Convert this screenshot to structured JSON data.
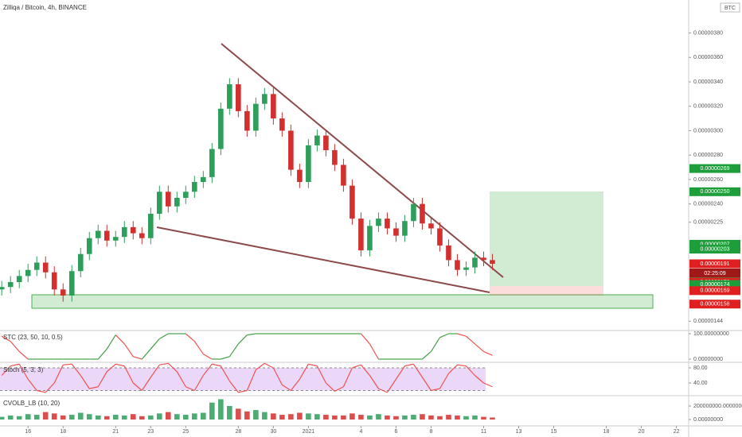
{
  "chart_data": {
    "type": "candlestick",
    "title": "Zilliqa / Bitcoin, 4h, BINANCE",
    "currency": "BTC",
    "countdown": "02:25:09",
    "up_color": "#2e9e5b",
    "down_color": "#d32f2f",
    "x": [
      -1.5,
      -1,
      -0.5,
      0,
      0.5,
      1,
      1.5,
      2,
      2.5,
      3,
      3.5,
      4,
      4.5,
      5,
      5.5,
      6,
      6.5,
      7,
      7.5,
      8,
      8.5,
      9,
      9.5,
      10,
      10.5,
      11,
      11.5,
      12,
      12.5,
      13,
      13.5,
      14,
      14.5,
      15,
      15.5,
      16,
      16.5,
      17,
      17.5,
      18,
      18.5,
      19,
      19.5,
      20,
      20.5,
      21,
      21.5,
      22,
      22.5,
      23,
      23.5,
      24,
      24.5,
      25,
      25.5,
      26,
      26.5
    ],
    "open": [
      1.7e-06,
      1.72e-06,
      1.76e-06,
      1.81e-06,
      1.86e-06,
      1.92e-06,
      1.84e-06,
      1.7e-06,
      1.65e-06,
      1.85e-06,
      1.99e-06,
      2.12e-06,
      2.18e-06,
      2.1e-06,
      2.13e-06,
      2.21e-06,
      2.16e-06,
      2.12e-06,
      2.32e-06,
      2.5e-06,
      2.38e-06,
      2.45e-06,
      2.5e-06,
      2.58e-06,
      2.62e-06,
      2.85e-06,
      3.18e-06,
      3.38e-06,
      3.16e-06,
      3e-06,
      3.22e-06,
      3.3e-06,
      3.1e-06,
      3e-06,
      2.68e-06,
      2.58e-06,
      2.88e-06,
      2.96e-06,
      2.84e-06,
      2.72e-06,
      2.55e-06,
      2.28e-06,
      2.02e-06,
      2.22e-06,
      2.28e-06,
      2.2e-06,
      2.14e-06,
      2.26e-06,
      2.4e-06,
      2.24e-06,
      2.2e-06,
      2.06e-06,
      1.94e-06,
      1.86e-06,
      1.88e-06,
      1.96e-06,
      1.94e-06
    ],
    "high": [
      1.77e-06,
      1.81e-06,
      1.86e-06,
      1.91e-06,
      1.97e-06,
      1.97e-06,
      1.89e-06,
      1.75e-06,
      1.9e-06,
      2.04e-06,
      2.17e-06,
      2.23e-06,
      2.23e-06,
      2.18e-06,
      2.26e-06,
      2.26e-06,
      2.21e-06,
      2.37e-06,
      2.55e-06,
      2.55e-06,
      2.5e-06,
      2.55e-06,
      2.63e-06,
      2.67e-06,
      2.9e-06,
      3.23e-06,
      3.43e-06,
      3.43e-06,
      3.21e-06,
      3.27e-06,
      3.35e-06,
      3.35e-06,
      3.15e-06,
      3.05e-06,
      2.73e-06,
      2.93e-06,
      3.01e-06,
      3.01e-06,
      2.89e-06,
      2.77e-06,
      2.6e-06,
      2.33e-06,
      2.27e-06,
      2.33e-06,
      2.33e-06,
      2.25e-06,
      2.31e-06,
      2.45e-06,
      2.45e-06,
      2.29e-06,
      2.25e-06,
      2.11e-06,
      1.99e-06,
      1.93e-06,
      2.01e-06,
      2.01e-06,
      1.99e-06
    ],
    "low": [
      1.65e-06,
      1.67e-06,
      1.71e-06,
      1.76e-06,
      1.81e-06,
      1.79e-06,
      1.65e-06,
      1.6e-06,
      1.6e-06,
      1.8e-06,
      1.94e-06,
      2.07e-06,
      2.05e-06,
      2.05e-06,
      2.08e-06,
      2.11e-06,
      2.07e-06,
      2.07e-06,
      2.27e-06,
      2.33e-06,
      2.33e-06,
      2.4e-06,
      2.45e-06,
      2.53e-06,
      2.57e-06,
      2.8e-06,
      3.13e-06,
      3.11e-06,
      2.95e-06,
      2.95e-06,
      3.17e-06,
      3.05e-06,
      2.95e-06,
      2.63e-06,
      2.53e-06,
      2.53e-06,
      2.83e-06,
      2.79e-06,
      2.67e-06,
      2.5e-06,
      2.23e-06,
      1.97e-06,
      1.97e-06,
      2.17e-06,
      2.15e-06,
      2.09e-06,
      2.09e-06,
      2.21e-06,
      2.19e-06,
      2.15e-06,
      2.01e-06,
      1.89e-06,
      1.81e-06,
      1.81e-06,
      1.83e-06,
      1.89e-06,
      1.86e-06
    ],
    "close": [
      1.72e-06,
      1.76e-06,
      1.81e-06,
      1.86e-06,
      1.92e-06,
      1.84e-06,
      1.7e-06,
      1.65e-06,
      1.85e-06,
      1.99e-06,
      2.12e-06,
      2.18e-06,
      2.1e-06,
      2.13e-06,
      2.21e-06,
      2.16e-06,
      2.12e-06,
      2.32e-06,
      2.5e-06,
      2.38e-06,
      2.45e-06,
      2.5e-06,
      2.58e-06,
      2.62e-06,
      2.85e-06,
      3.18e-06,
      3.38e-06,
      3.16e-06,
      3e-06,
      3.22e-06,
      3.3e-06,
      3.1e-06,
      3e-06,
      2.68e-06,
      2.58e-06,
      2.88e-06,
      2.96e-06,
      2.84e-06,
      2.72e-06,
      2.55e-06,
      2.28e-06,
      2.02e-06,
      2.22e-06,
      2.28e-06,
      2.2e-06,
      2.14e-06,
      2.26e-06,
      2.4e-06,
      2.24e-06,
      2.2e-06,
      2.06e-06,
      1.94e-06,
      1.86e-06,
      1.88e-06,
      1.96e-06,
      1.94e-06,
      1.91e-06
    ],
    "xlim": [
      -1.6,
      37.7
    ],
    "xticks": [
      {
        "value": 0,
        "label": "16"
      },
      {
        "value": 2,
        "label": "18"
      },
      {
        "value": 5,
        "label": "21"
      },
      {
        "value": 7,
        "label": "23"
      },
      {
        "value": 9,
        "label": "25"
      },
      {
        "value": 12,
        "label": "28"
      },
      {
        "value": 14,
        "label": "30"
      },
      {
        "value": 16,
        "label": "2021"
      },
      {
        "value": 19,
        "label": "4"
      },
      {
        "value": 21,
        "label": "6"
      },
      {
        "value": 23,
        "label": "8"
      },
      {
        "value": 26,
        "label": "11"
      },
      {
        "value": 28,
        "label": "13"
      },
      {
        "value": 30,
        "label": "15"
      },
      {
        "value": 33,
        "label": "18"
      },
      {
        "value": 35,
        "label": "20"
      },
      {
        "value": 37,
        "label": "22"
      }
    ],
    "ylim": [
      1.37e-06,
      4.07e-06
    ],
    "yticks": [
      {
        "value": 3.8e-06,
        "label": "0.00000380"
      },
      {
        "value": 3.6e-06,
        "label": "0.00000360"
      },
      {
        "value": 3.4e-06,
        "label": "0.00000340"
      },
      {
        "value": 3.2e-06,
        "label": "0.00000320"
      },
      {
        "value": 3e-06,
        "label": "0.00000300"
      },
      {
        "value": 2.8e-06,
        "label": "0.00000280"
      },
      {
        "value": 2.6e-06,
        "label": "0.00000260"
      },
      {
        "value": 2.4e-06,
        "label": "0.00000240"
      },
      {
        "value": 2.25e-06,
        "label": "0.00000225"
      },
      {
        "value": 1.44e-06,
        "label": "0.00000144"
      }
    ],
    "price_tags": [
      {
        "value": 2.69e-06,
        "label": "0.00000269",
        "color": "#1e9e3a"
      },
      {
        "value": 2.5e-06,
        "label": "0.00000250",
        "color": "#1e9e3a"
      },
      {
        "value": 2.07e-06,
        "label": "0.00000207",
        "color": "#1e9e3a"
      },
      {
        "value": 2.03e-06,
        "label": "0.00000203",
        "color": "#1e9e3a"
      },
      {
        "value": 1.91e-06,
        "label": "0.00000191",
        "color": "#e02020"
      },
      {
        "value": 1.82e-06,
        "label": "0.00000182",
        "color": "#1e9e3a"
      },
      {
        "value": 1.76e-06,
        "label": "0.00000176",
        "color": "#e02020"
      },
      {
        "value": 1.74e-06,
        "label": "0.00000174",
        "color": "#1e9e3a"
      },
      {
        "value": 1.69e-06,
        "label": "0.00000169",
        "color": "#e02020"
      },
      {
        "value": 1.58e-06,
        "label": "0.00000158",
        "color": "#e02020"
      }
    ],
    "indicators": [
      {
        "type": "line",
        "title": "STC (23, 50, 10, 0.5)",
        "up_color": "#43a047",
        "down_color": "#ef5350",
        "ylim": [
          -9.4,
          109.4
        ],
        "yticks": [
          {
            "value": 100,
            "label": "100.00000000"
          },
          {
            "value": 0,
            "label": "0.00000000"
          }
        ],
        "values": [
          90,
          70,
          30,
          0,
          0,
          0,
          0,
          0,
          0,
          0,
          0,
          0,
          40,
          95,
          60,
          10,
          0,
          40,
          80,
          100,
          100,
          100,
          70,
          20,
          0,
          0,
          10,
          60,
          95,
          100,
          100,
          100,
          100,
          100,
          100,
          100,
          100,
          100,
          100,
          100,
          100,
          100,
          60,
          0,
          0,
          0,
          0,
          0,
          0,
          30,
          85,
          100,
          100,
          90,
          60,
          30,
          15
        ]
      },
      {
        "type": "line",
        "title": "Stoch (5, 3, 3)",
        "color": "#ef5350",
        "band": [
          20,
          80
        ],
        "band_color": "#e3c6f5",
        "ylim": [
          8.4,
          90.5
        ],
        "yticks": [
          {
            "value": 80,
            "label": "80.00"
          },
          {
            "value": 40,
            "label": "40.00"
          }
        ],
        "values": [
          60,
          85,
          90,
          50,
          20,
          15,
          40,
          88,
          90,
          60,
          25,
          30,
          70,
          90,
          85,
          40,
          20,
          55,
          88,
          92,
          70,
          30,
          20,
          60,
          90,
          85,
          45,
          15,
          20,
          75,
          92,
          80,
          35,
          20,
          50,
          90,
          85,
          40,
          18,
          30,
          80,
          88,
          60,
          25,
          15,
          50,
          85,
          90,
          55,
          20,
          25,
          65,
          88,
          85,
          60,
          40,
          30
        ]
      },
      {
        "type": "bar",
        "title": "CVOLB_LB (10, 20)",
        "ylim": [
          -82000000.0,
          329000000.0
        ],
        "yticks": [
          {
            "value": 200000000,
            "label": "200000000.00000000"
          },
          {
            "value": 0,
            "label": "0.00000000"
          }
        ],
        "values": [
          40000000.0,
          60000000.0,
          50000000.0,
          80000000.0,
          70000000.0,
          110000000.0,
          90000000.0,
          60000000.0,
          70000000.0,
          100000000.0,
          80000000.0,
          60000000.0,
          50000000.0,
          70000000.0,
          60000000.0,
          80000000.0,
          50000000.0,
          60000000.0,
          90000000.0,
          110000000.0,
          80000000.0,
          70000000.0,
          90000000.0,
          100000000.0,
          250000000.0,
          300000000.0,
          200000000.0,
          160000000.0,
          120000000.0,
          140000000.0,
          110000000.0,
          90000000.0,
          70000000.0,
          80000000.0,
          100000000.0,
          90000000.0,
          80000000.0,
          70000000.0,
          60000000.0,
          60000000.0,
          90000000.0,
          70000000.0,
          60000000.0,
          80000000.0,
          60000000.0,
          50000000.0,
          60000000.0,
          70000000.0,
          80000000.0,
          60000000.0,
          50000000.0,
          70000000.0,
          60000000.0,
          50000000.0,
          60000000.0,
          40000000.0,
          30000000.0
        ]
      }
    ]
  }
}
